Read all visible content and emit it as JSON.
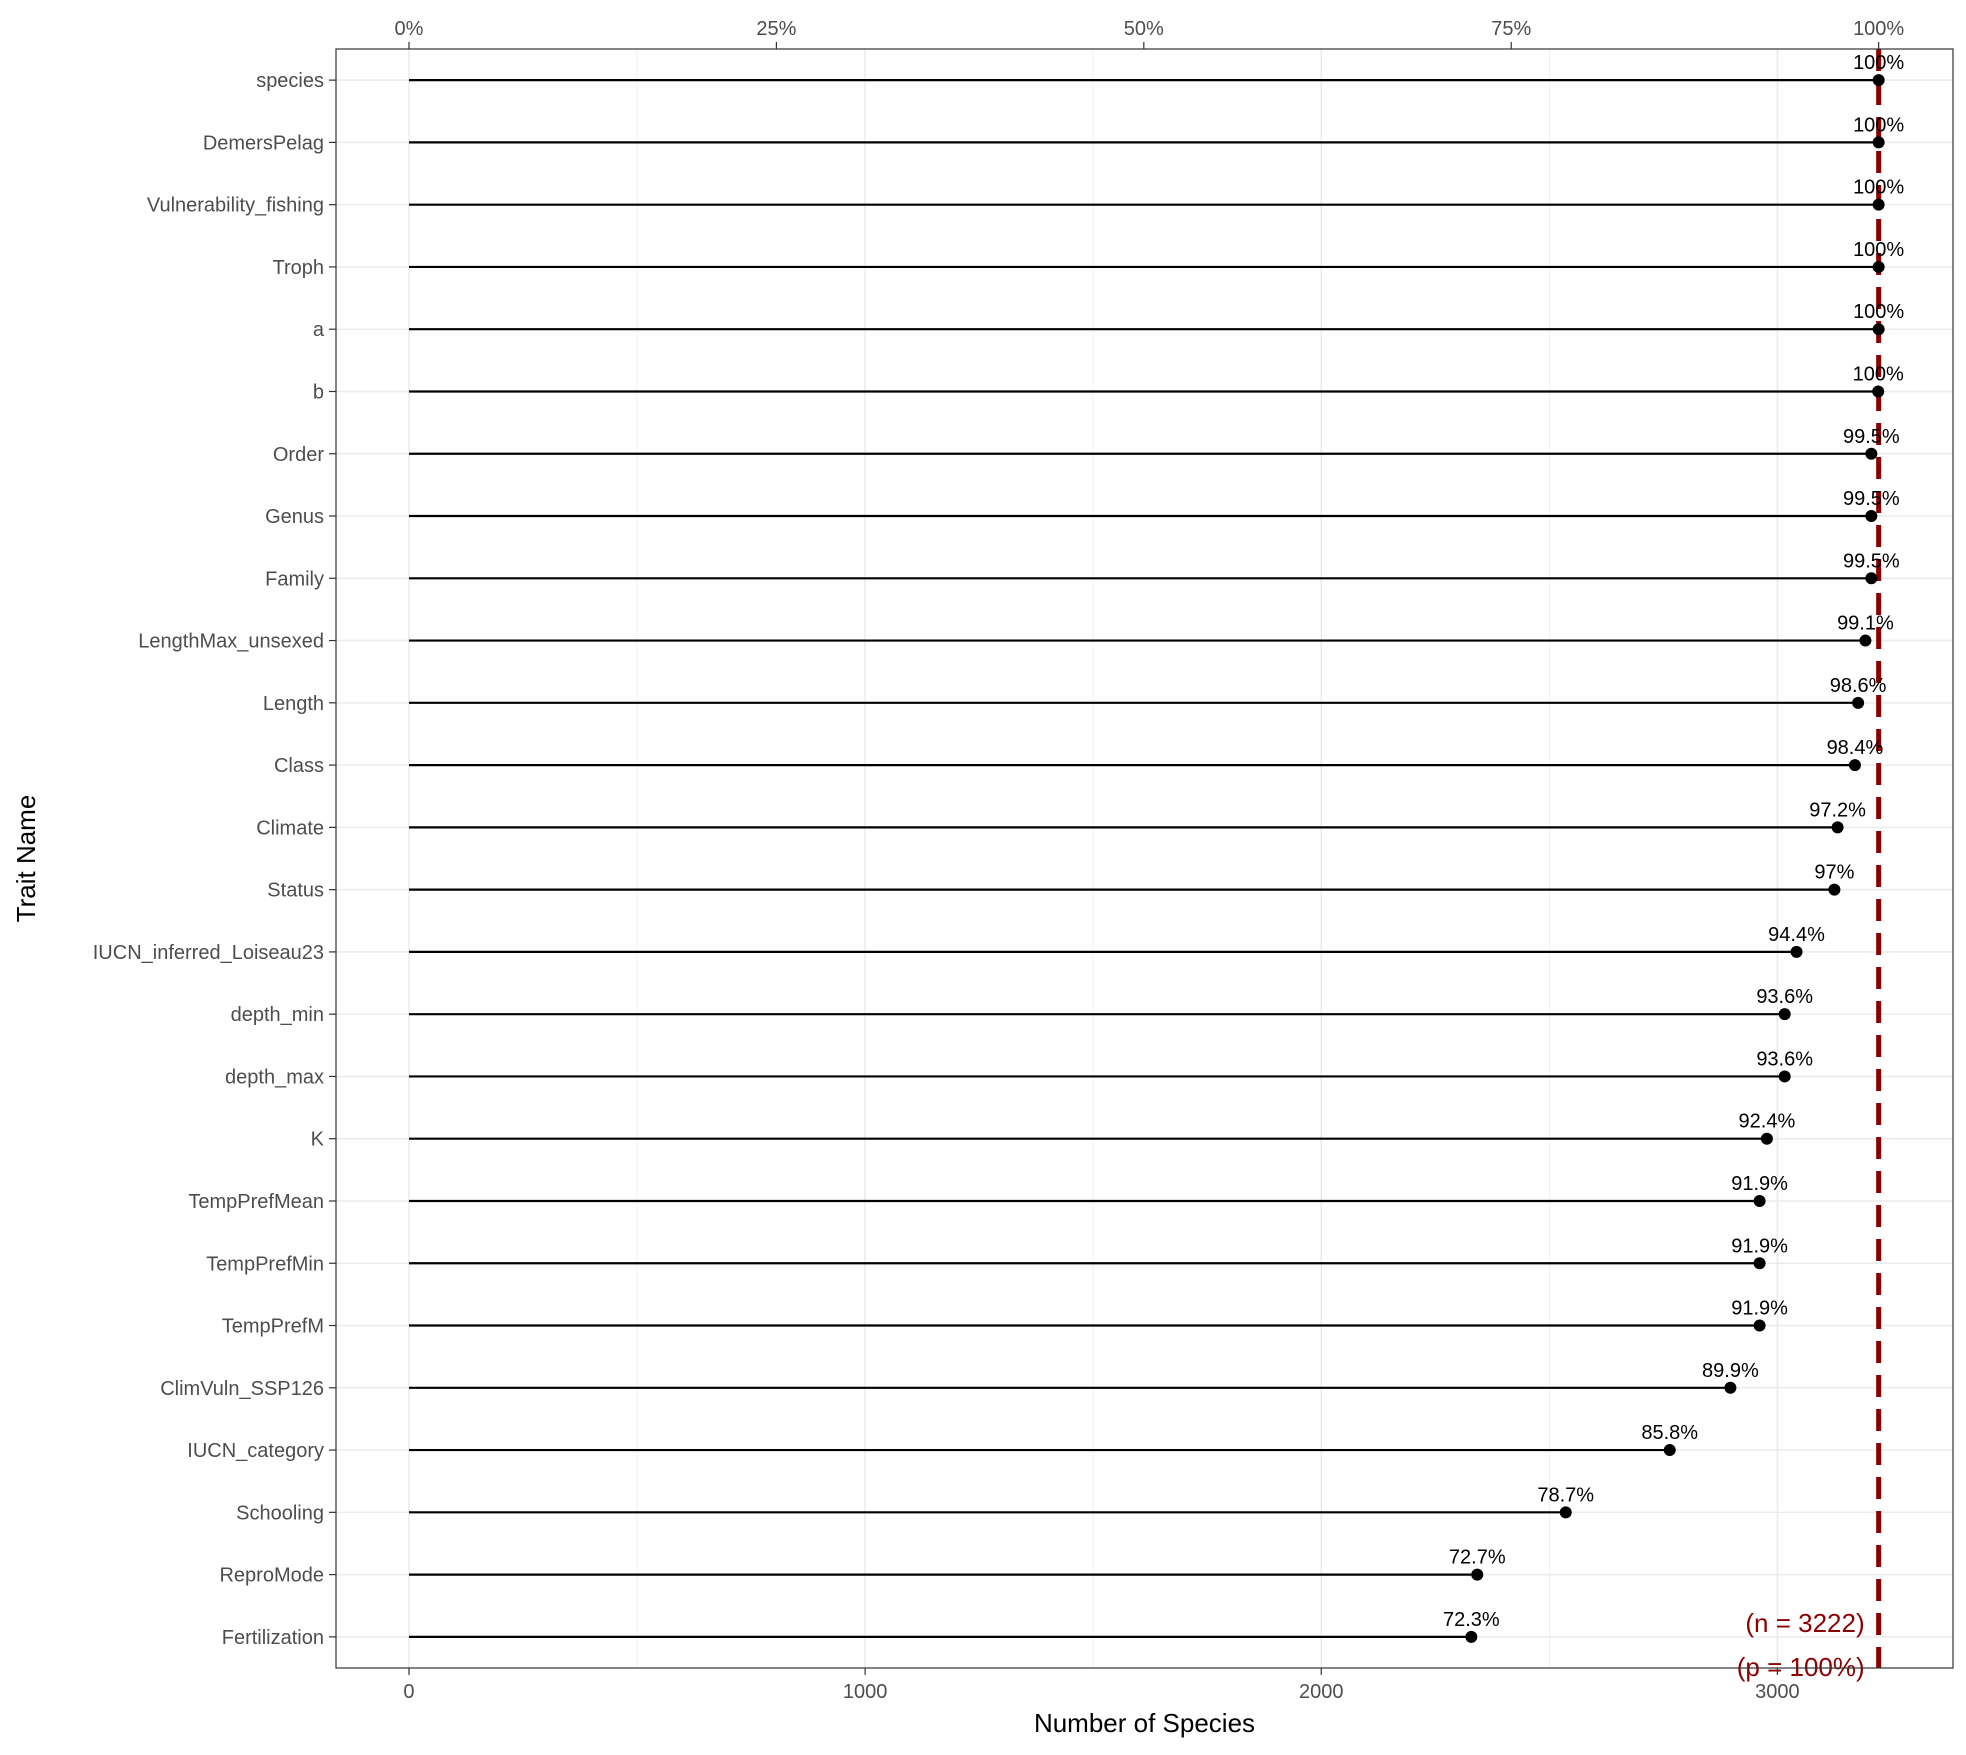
{
  "chart_data": {
    "type": "lollipop",
    "xlabel": "Number of Species",
    "ylabel": "Trait Name",
    "xlim": [
      -160,
      3385
    ],
    "x_ticks_bottom": [
      0,
      1000,
      2000,
      3000
    ],
    "x_ticks_top": [
      {
        "value": 0,
        "label": "0%"
      },
      {
        "value": 805.5,
        "label": "25%"
      },
      {
        "value": 1611,
        "label": "50%"
      },
      {
        "value": 2416.5,
        "label": "75%"
      },
      {
        "value": 3222,
        "label": "100%"
      }
    ],
    "grid": true,
    "total_species": 3222,
    "reference_line": {
      "value": 3222,
      "style": "dashed",
      "color": "#8b0000",
      "labels": [
        "(n = 3222)",
        "(p = 100%)"
      ]
    },
    "categories": [
      "species",
      "DemersPelag",
      "Vulnerability_fishing",
      "Troph",
      "a",
      "b",
      "Order",
      "Genus",
      "Family",
      "LengthMax_unsexed",
      "Length",
      "Class",
      "Climate",
      "Status",
      "IUCN_inferred_Loiseau23",
      "depth_min",
      "depth_max",
      "K",
      "TempPrefMean",
      "TempPrefMin",
      "TempPrefM",
      "ClimVuln_SSP126",
      "IUCN_category",
      "Schooling",
      "ReproMode",
      "Fertilization"
    ],
    "values": [
      3222,
      3222,
      3222,
      3222,
      3222,
      3221,
      3206,
      3206,
      3206,
      3193,
      3177,
      3170,
      3132,
      3125,
      3042,
      3016,
      3016,
      2977,
      2961,
      2961,
      2961,
      2897,
      2764,
      2536,
      2342,
      2329
    ],
    "percent_labels": [
      "100%",
      "100%",
      "100%",
      "100%",
      "100%",
      "100%",
      "99.5%",
      "99.5%",
      "99.5%",
      "99.1%",
      "98.6%",
      "98.4%",
      "97.2%",
      "97%",
      "94.4%",
      "93.6%",
      "93.6%",
      "92.4%",
      "91.9%",
      "91.9%",
      "91.9%",
      "89.9%",
      "85.8%",
      "78.7%",
      "72.7%",
      "72.3%"
    ],
    "colors": {
      "line": "#000000",
      "point": "#000000",
      "grid": "#ebebeb",
      "panel_border": "#333333",
      "reference": "#8b0000"
    }
  }
}
